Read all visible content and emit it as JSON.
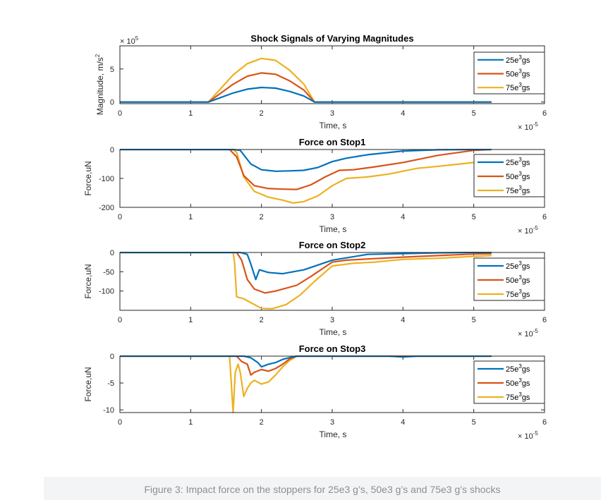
{
  "figure": {
    "caption": "Figure 3:  Impact force on the stoppers for 25e3 g’s, 50e3 g’s and 75e3 g’s shocks"
  },
  "colors": {
    "s25": "#0072BD",
    "s50": "#D95319",
    "s75": "#EDB120"
  },
  "chart_data": [
    {
      "type": "line",
      "title": "Shock Signals of Varying Magnitudes",
      "xlabel": "Time, s",
      "ylabel": "Magnitude, m/s",
      "ylabel_sup": "2",
      "x_exponent_base": "× 10",
      "x_exponent": "-5",
      "y_exponent_base": "× 10",
      "y_exponent": "5",
      "xlim": [
        0,
        6
      ],
      "ylim": [
        -0.25,
        8.5
      ],
      "x_ticks": [
        0,
        1,
        2,
        3,
        4,
        5,
        6
      ],
      "y_ticks": [
        0,
        5
      ],
      "x_tick_labels": [
        "0",
        "1",
        "2",
        "3",
        "4",
        "5",
        "6"
      ],
      "y_tick_labels": [
        "0",
        "5"
      ],
      "legend": {
        "position": "top-right",
        "entries": [
          "25e",
          "50e",
          "75e"
        ],
        "sup": "3",
        "suffix": "gs"
      },
      "series": [
        {
          "name": "25e3gs",
          "x": [
            0,
            1.25,
            1.4,
            1.6,
            1.8,
            2.0,
            2.2,
            2.4,
            2.6,
            2.75,
            3,
            4,
            5.25
          ],
          "y": [
            0,
            0,
            0.58,
            1.36,
            1.95,
            2.2,
            2.1,
            1.6,
            0.9,
            0,
            0,
            0,
            0
          ]
        },
        {
          "name": "50e3gs",
          "x": [
            0,
            1.25,
            1.4,
            1.6,
            1.8,
            2.0,
            2.2,
            2.4,
            2.6,
            2.75,
            3,
            4,
            5.25
          ],
          "y": [
            0,
            0,
            1.15,
            2.7,
            3.9,
            4.4,
            4.2,
            3.2,
            1.8,
            0,
            0,
            0,
            0
          ]
        },
        {
          "name": "75e3gs",
          "x": [
            0,
            1.25,
            1.4,
            1.6,
            1.8,
            2.0,
            2.2,
            2.4,
            2.6,
            2.75,
            3,
            4,
            5.25
          ],
          "y": [
            0,
            0,
            1.75,
            4.1,
            5.8,
            6.6,
            6.3,
            4.8,
            2.7,
            0,
            0,
            0,
            0
          ]
        }
      ]
    },
    {
      "type": "line",
      "title": "Force on Stop1",
      "xlabel": "Time, s",
      "ylabel": "Force,uN",
      "ylabel_sup": "",
      "x_exponent_base": "× 10",
      "x_exponent": "-5",
      "y_exponent_base": "",
      "y_exponent": "",
      "xlim": [
        0,
        6
      ],
      "ylim": [
        -200,
        0
      ],
      "x_ticks": [
        0,
        1,
        2,
        3,
        4,
        5,
        6
      ],
      "y_ticks": [
        0,
        -100,
        -200
      ],
      "x_tick_labels": [
        "0",
        "1",
        "2",
        "3",
        "4",
        "5",
        "6"
      ],
      "y_tick_labels": [
        "0",
        "-100",
        "-200"
      ],
      "legend": {
        "position": "right",
        "entries": [
          "25e",
          "50e",
          "75e"
        ],
        "sup": "3",
        "suffix": "gs"
      },
      "series": [
        {
          "name": "25e3gs",
          "x": [
            0,
            1.6,
            1.7,
            1.85,
            2.0,
            2.2,
            2.4,
            2.6,
            2.8,
            3.0,
            3.2,
            3.5,
            4.0,
            4.5,
            5.0,
            5.25
          ],
          "y": [
            0,
            0,
            -3,
            -50,
            -70,
            -75,
            -74,
            -72,
            -62,
            -42,
            -30,
            -18,
            -5,
            -1,
            0,
            0
          ]
        },
        {
          "name": "50e3gs",
          "x": [
            0,
            1.55,
            1.65,
            1.75,
            1.9,
            2.1,
            2.3,
            2.5,
            2.7,
            2.9,
            3.1,
            3.3,
            3.6,
            4.0,
            4.5,
            5.0,
            5.25
          ],
          "y": [
            0,
            0,
            -25,
            -90,
            -125,
            -135,
            -137,
            -138,
            -122,
            -95,
            -72,
            -70,
            -60,
            -45,
            -20,
            -3,
            0
          ]
        },
        {
          "name": "75e3gs",
          "x": [
            0,
            1.6,
            1.65,
            1.75,
            1.9,
            2.1,
            2.3,
            2.45,
            2.6,
            2.8,
            3.0,
            3.2,
            3.5,
            3.8,
            4.2,
            4.5,
            5.0,
            5.25
          ],
          "y": [
            0,
            0,
            -10,
            -95,
            -145,
            -165,
            -175,
            -185,
            -180,
            -160,
            -125,
            -100,
            -95,
            -85,
            -65,
            -58,
            -45,
            -40
          ]
        }
      ]
    },
    {
      "type": "line",
      "title": "Force on Stop2",
      "xlabel": "Time, s",
      "ylabel": "Force,uN",
      "ylabel_sup": "",
      "x_exponent_base": "× 10",
      "x_exponent": "-5",
      "y_exponent_base": "",
      "y_exponent": "",
      "xlim": [
        0,
        6
      ],
      "ylim": [
        -150,
        0
      ],
      "x_ticks": [
        0,
        1,
        2,
        3,
        4,
        5,
        6
      ],
      "y_ticks": [
        0,
        -50,
        -100
      ],
      "x_tick_labels": [
        "0",
        "1",
        "2",
        "3",
        "4",
        "5",
        "6"
      ],
      "y_tick_labels": [
        "0",
        "-50",
        "-100"
      ],
      "legend": {
        "position": "right",
        "entries": [
          "25e",
          "50e",
          "75e"
        ],
        "sup": "3",
        "suffix": "gs"
      },
      "series": [
        {
          "name": "25e3gs",
          "x": [
            0,
            1.7,
            1.8,
            1.85,
            1.92,
            1.97,
            2.1,
            2.3,
            2.6,
            3.0,
            3.5,
            4.0,
            4.5,
            5.0,
            5.25
          ],
          "y": [
            0,
            0,
            -5,
            -30,
            -70,
            -45,
            -52,
            -55,
            -45,
            -20,
            -5,
            -3,
            -1,
            0,
            0
          ]
        },
        {
          "name": "50e3gs",
          "x": [
            0,
            1.65,
            1.72,
            1.8,
            1.9,
            2.05,
            2.2,
            2.5,
            2.7,
            3.0,
            3.2,
            3.6,
            4.0,
            4.5,
            5.0,
            5.25
          ],
          "y": [
            0,
            0,
            -20,
            -70,
            -95,
            -105,
            -100,
            -85,
            -62,
            -25,
            -20,
            -16,
            -12,
            -8,
            -4,
            -3
          ]
        },
        {
          "name": "75e3gs",
          "x": [
            0,
            1.6,
            1.62,
            1.65,
            1.75,
            1.85,
            2.0,
            2.15,
            2.35,
            2.55,
            2.75,
            3.0,
            3.3,
            3.6,
            4.0,
            4.5,
            5.0,
            5.25
          ],
          "y": [
            0,
            0,
            -25,
            -115,
            -120,
            -130,
            -145,
            -146,
            -135,
            -110,
            -75,
            -35,
            -28,
            -25,
            -18,
            -15,
            -10,
            -8
          ]
        }
      ]
    },
    {
      "type": "line",
      "title": "Force on Stop3",
      "xlabel": "Time, s",
      "ylabel": "Force,uN",
      "ylabel_sup": "",
      "x_exponent_base": "× 10",
      "x_exponent": "-5",
      "y_exponent_base": "",
      "y_exponent": "",
      "xlim": [
        0,
        6
      ],
      "ylim": [
        -10.5,
        0
      ],
      "x_ticks": [
        0,
        1,
        2,
        3,
        4,
        5,
        6
      ],
      "y_ticks": [
        0,
        -5,
        -10
      ],
      "x_tick_labels": [
        "0",
        "1",
        "2",
        "3",
        "4",
        "5",
        "6"
      ],
      "y_tick_labels": [
        "0",
        "-5",
        "-10"
      ],
      "legend": {
        "position": "right",
        "entries": [
          "25e",
          "50e",
          "75e"
        ],
        "sup": "3",
        "suffix": "gs"
      },
      "series": [
        {
          "name": "25e3gs",
          "x": [
            0,
            1.75,
            1.85,
            1.95,
            2.0,
            2.1,
            2.2,
            2.3,
            2.45,
            2.5,
            3.0,
            3.5,
            3.8,
            4.0,
            4.2,
            5.25
          ],
          "y": [
            0,
            0,
            -0.3,
            -1.2,
            -2.0,
            -1.5,
            -1.2,
            -0.6,
            -0.1,
            0,
            0,
            0,
            0,
            -0.15,
            0,
            0
          ]
        },
        {
          "name": "50e3gs",
          "x": [
            0,
            1.65,
            1.72,
            1.8,
            1.85,
            1.9,
            2.0,
            2.1,
            2.2,
            2.3,
            2.4,
            2.5,
            5.25
          ],
          "y": [
            0,
            0,
            -1.0,
            -1.5,
            -3.5,
            -3.0,
            -2.5,
            -2.8,
            -2.3,
            -1.5,
            -0.5,
            0,
            0
          ]
        },
        {
          "name": "75e3gs",
          "x": [
            0,
            1.55,
            1.6,
            1.63,
            1.67,
            1.7,
            1.75,
            1.8,
            1.85,
            1.9,
            2.0,
            2.1,
            2.2,
            2.3,
            2.4,
            2.5,
            5.25
          ],
          "y": [
            0,
            0,
            -10.5,
            -3,
            -1.5,
            -3,
            -7.5,
            -6,
            -5,
            -4.5,
            -5.2,
            -4.8,
            -3.5,
            -2,
            -0.8,
            0,
            0
          ]
        }
      ]
    }
  ]
}
